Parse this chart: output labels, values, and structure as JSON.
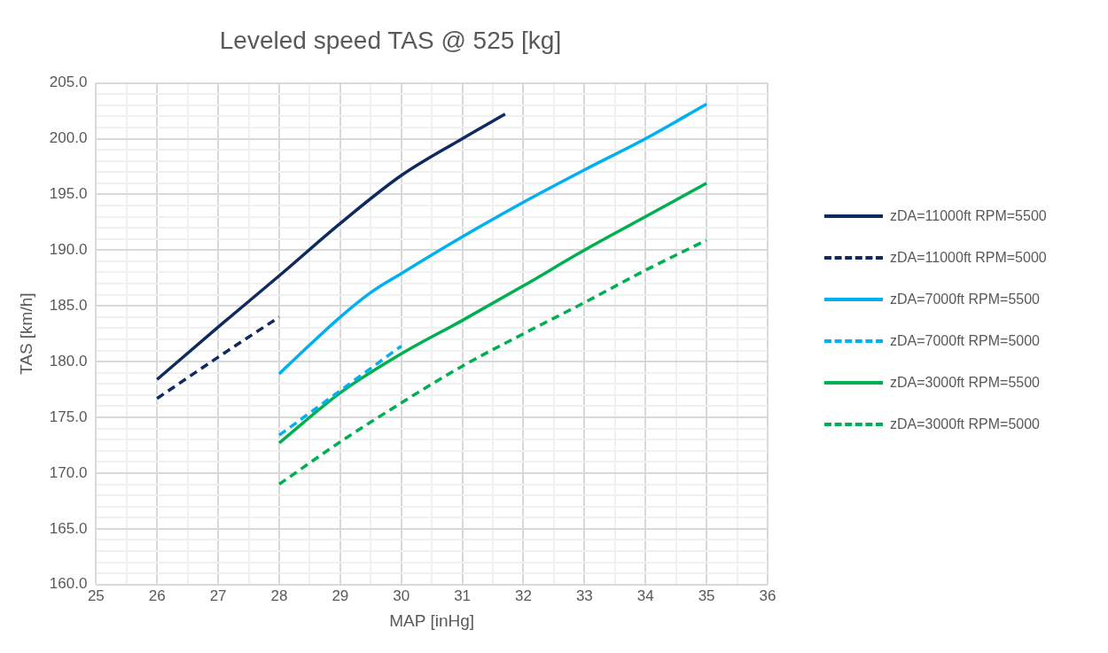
{
  "chart_data": {
    "type": "line",
    "title": "Leveled speed TAS @ 525 [kg]",
    "xlabel": "MAP [inHg]",
    "ylabel": "TAS [km/h]",
    "xlim": [
      25,
      36
    ],
    "xticks": [
      25,
      {
        "value": 25.5,
        "label": null
      },
      26,
      {
        "value": 26.5,
        "label": null
      },
      27,
      {
        "value": 27.5,
        "label": null
      },
      28,
      {
        "value": 28.5,
        "label": null
      },
      29,
      {
        "value": 29.5,
        "label": null
      },
      30,
      {
        "value": 30.5,
        "label": null
      },
      31,
      {
        "value": 31.5,
        "label": null
      },
      32,
      {
        "value": 32.5,
        "label": null
      },
      33,
      {
        "value": 33.5,
        "label": null
      },
      34,
      {
        "value": 34.5,
        "label": null
      },
      35,
      {
        "value": 35.5,
        "label": null
      },
      36
    ],
    "ylim": [
      160,
      205
    ],
    "yticks": [
      {
        "value": 160,
        "label": "160.0"
      },
      {
        "value": 161,
        "label": null
      },
      {
        "value": 162,
        "label": null
      },
      {
        "value": 163,
        "label": null
      },
      {
        "value": 164,
        "label": null
      },
      {
        "value": 165,
        "label": "165.0"
      },
      {
        "value": 166,
        "label": null
      },
      {
        "value": 167,
        "label": null
      },
      {
        "value": 168,
        "label": null
      },
      {
        "value": 169,
        "label": null
      },
      {
        "value": 170,
        "label": "170.0"
      },
      {
        "value": 171,
        "label": null
      },
      {
        "value": 172,
        "label": null
      },
      {
        "value": 173,
        "label": null
      },
      {
        "value": 174,
        "label": null
      },
      {
        "value": 175,
        "label": "175.0"
      },
      {
        "value": 176,
        "label": null
      },
      {
        "value": 177,
        "label": null
      },
      {
        "value": 178,
        "label": null
      },
      {
        "value": 179,
        "label": null
      },
      {
        "value": 180,
        "label": "180.0"
      },
      {
        "value": 181,
        "label": null
      },
      {
        "value": 182,
        "label": null
      },
      {
        "value": 183,
        "label": null
      },
      {
        "value": 184,
        "label": null
      },
      {
        "value": 185,
        "label": "185.0"
      },
      {
        "value": 186,
        "label": null
      },
      {
        "value": 187,
        "label": null
      },
      {
        "value": 188,
        "label": null
      },
      {
        "value": 189,
        "label": null
      },
      {
        "value": 190,
        "label": "190.0"
      },
      {
        "value": 191,
        "label": null
      },
      {
        "value": 192,
        "label": null
      },
      {
        "value": 193,
        "label": null
      },
      {
        "value": 194,
        "label": null
      },
      {
        "value": 195,
        "label": "195.0"
      },
      {
        "value": 196,
        "label": null
      },
      {
        "value": 197,
        "label": null
      },
      {
        "value": 198,
        "label": null
      },
      {
        "value": 199,
        "label": null
      },
      {
        "value": 200,
        "label": "200.0"
      },
      {
        "value": 201,
        "label": null
      },
      {
        "value": 202,
        "label": null
      },
      {
        "value": 203,
        "label": null
      },
      {
        "value": 204,
        "label": null
      },
      {
        "value": 205,
        "label": "205.0"
      }
    ],
    "grid": true,
    "legend": "right",
    "marker": "none",
    "series": [
      {
        "name": "zDA=11000ft RPM=5500",
        "color": "#0e2a5e",
        "line_style": "solid",
        "x": [
          26,
          27,
          28,
          29,
          30,
          31,
          31.7
        ],
        "values": [
          178.4,
          183.1,
          187.7,
          192.4,
          196.7,
          200.0,
          202.2
        ]
      },
      {
        "name": "zDA=11000ft RPM=5000",
        "color": "#0e2a5e",
        "line_style": "dashed",
        "x": [
          26,
          27,
          28
        ],
        "values": [
          176.7,
          180.4,
          184.0
        ]
      },
      {
        "name": "zDA=7000ft RPM=5500",
        "color": "#00b0f0",
        "line_style": "solid",
        "x": [
          28,
          28.5,
          29,
          29.5,
          30,
          31,
          32,
          33,
          34,
          35
        ],
        "values": [
          178.9,
          181.5,
          184.0,
          186.2,
          187.9,
          191.2,
          194.3,
          197.2,
          200.0,
          203.1
        ]
      },
      {
        "name": "zDA=7000ft RPM=5000",
        "color": "#00b0f0",
        "line_style": "dashed",
        "x": [
          28,
          29,
          30
        ],
        "values": [
          173.4,
          177.4,
          181.4
        ]
      },
      {
        "name": "zDA=3000ft RPM=5500",
        "color": "#00b050",
        "line_style": "solid",
        "x": [
          28,
          29,
          30,
          31,
          32,
          33,
          34,
          35
        ],
        "values": [
          172.7,
          177.2,
          180.7,
          183.7,
          186.8,
          190.0,
          193.0,
          196.0
        ]
      },
      {
        "name": "zDA=3000ft RPM=5000",
        "color": "#00b050",
        "line_style": "dashed",
        "x": [
          28,
          29,
          30,
          31,
          32,
          33,
          34,
          35
        ],
        "values": [
          169.0,
          172.8,
          176.3,
          179.6,
          182.5,
          185.3,
          188.2,
          190.9
        ]
      }
    ]
  }
}
